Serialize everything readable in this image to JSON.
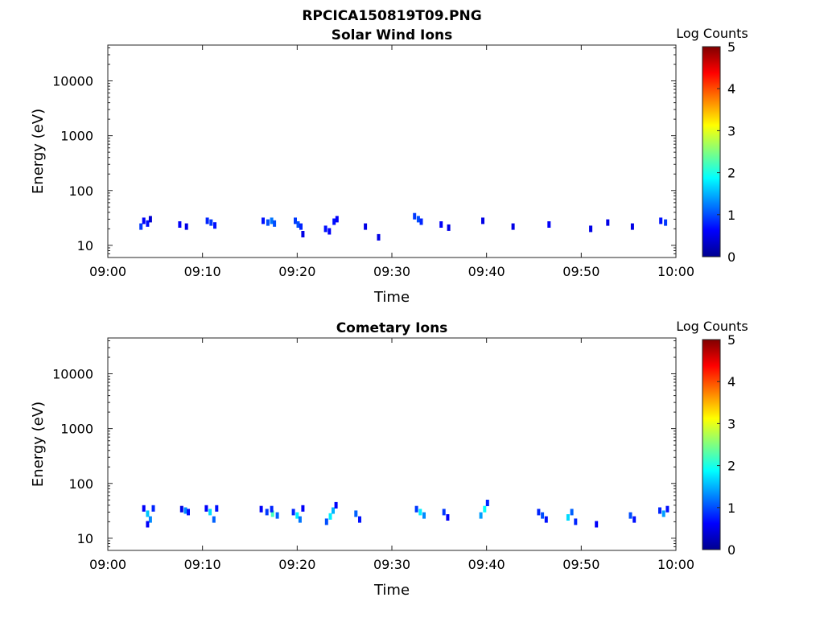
{
  "figure_title": "RPCICA150819T09.PNG",
  "chart_data": [
    {
      "type": "heatmap",
      "title": "Solar Wind Ions",
      "xlabel": "Time",
      "ylabel": "Energy (eV)",
      "x_ticks": [
        "09:00",
        "09:10",
        "09:20",
        "09:30",
        "09:40",
        "09:50",
        "10:00"
      ],
      "xlim": [
        "09:00",
        "10:00"
      ],
      "y_scale": "log",
      "y_ticks": [
        10,
        100,
        1000,
        10000
      ],
      "ylim": [
        6,
        45000
      ],
      "colorbar": {
        "label": "Log Counts",
        "range": [
          0,
          5
        ],
        "ticks": [
          0,
          1,
          2,
          3,
          4,
          5
        ],
        "colormap": "jet"
      },
      "cells": [
        [
          3.5,
          22,
          0.9
        ],
        [
          3.8,
          28,
          0.6
        ],
        [
          4.2,
          25,
          0.7
        ],
        [
          4.5,
          30,
          0.4
        ],
        [
          7.6,
          24,
          0.6
        ],
        [
          8.3,
          22,
          0.5
        ],
        [
          10.5,
          28,
          0.8
        ],
        [
          10.9,
          26,
          0.9
        ],
        [
          11.3,
          23,
          0.7
        ],
        [
          16.4,
          28,
          0.7
        ],
        [
          16.9,
          26,
          1.0
        ],
        [
          17.3,
          28,
          1.2
        ],
        [
          17.6,
          25,
          1.0
        ],
        [
          19.8,
          28,
          0.9
        ],
        [
          20.1,
          24,
          1.0
        ],
        [
          20.4,
          22,
          0.8
        ],
        [
          20.6,
          16,
          0.5
        ],
        [
          23.0,
          20,
          0.7
        ],
        [
          23.4,
          18,
          0.6
        ],
        [
          23.9,
          27,
          0.7
        ],
        [
          24.2,
          30,
          0.6
        ],
        [
          27.2,
          22,
          0.5
        ],
        [
          28.6,
          14,
          0.5
        ],
        [
          32.4,
          34,
          0.9
        ],
        [
          32.8,
          30,
          1.0
        ],
        [
          33.1,
          27,
          0.8
        ],
        [
          35.2,
          24,
          0.6
        ],
        [
          36.0,
          21,
          0.5
        ],
        [
          39.6,
          28,
          0.5
        ],
        [
          42.8,
          22,
          0.5
        ],
        [
          46.6,
          24,
          0.6
        ],
        [
          51.0,
          20,
          0.5
        ],
        [
          52.8,
          26,
          0.5
        ],
        [
          55.4,
          22,
          0.5
        ],
        [
          58.4,
          28,
          0.7
        ],
        [
          58.9,
          26,
          0.9
        ]
      ]
    },
    {
      "type": "heatmap",
      "title": "Cometary Ions",
      "xlabel": "Time",
      "ylabel": "Energy (eV)",
      "x_ticks": [
        "09:00",
        "09:10",
        "09:20",
        "09:30",
        "09:40",
        "09:50",
        "10:00"
      ],
      "xlim": [
        "09:00",
        "10:00"
      ],
      "y_scale": "log",
      "y_ticks": [
        10,
        100,
        1000,
        10000
      ],
      "ylim": [
        6,
        45000
      ],
      "colorbar": {
        "label": "Log Counts",
        "range": [
          0,
          5
        ],
        "ticks": [
          0,
          1,
          2,
          3,
          4,
          5
        ],
        "colormap": "jet"
      },
      "cells": [
        [
          3.8,
          35,
          0.6
        ],
        [
          4.2,
          28,
          1.6
        ],
        [
          4.5,
          22,
          1.3
        ],
        [
          4.8,
          35,
          0.8
        ],
        [
          4.2,
          18,
          0.6
        ],
        [
          7.8,
          34,
          0.5
        ],
        [
          8.2,
          32,
          1.3
        ],
        [
          8.5,
          30,
          0.7
        ],
        [
          10.4,
          35,
          0.6
        ],
        [
          10.8,
          30,
          1.7
        ],
        [
          11.2,
          22,
          1.1
        ],
        [
          11.5,
          35,
          0.7
        ],
        [
          16.2,
          34,
          0.6
        ],
        [
          16.8,
          30,
          0.9
        ],
        [
          17.4,
          28,
          2.2
        ],
        [
          17.9,
          26,
          1.1
        ],
        [
          17.3,
          34,
          0.8
        ],
        [
          19.6,
          30,
          0.8
        ],
        [
          20.0,
          26,
          1.8
        ],
        [
          20.3,
          22,
          1.2
        ],
        [
          20.6,
          35,
          0.6
        ],
        [
          23.1,
          20,
          1.0
        ],
        [
          23.5,
          25,
          1.8
        ],
        [
          23.8,
          32,
          1.5
        ],
        [
          24.1,
          40,
          0.6
        ],
        [
          26.2,
          28,
          1.1
        ],
        [
          26.6,
          22,
          0.7
        ],
        [
          32.6,
          34,
          0.9
        ],
        [
          33.0,
          30,
          1.8
        ],
        [
          33.4,
          26,
          1.3
        ],
        [
          35.5,
          30,
          0.9
        ],
        [
          35.9,
          24,
          0.6
        ],
        [
          39.4,
          26,
          1.4
        ],
        [
          39.8,
          34,
          1.9
        ],
        [
          40.1,
          44,
          0.8
        ],
        [
          45.5,
          30,
          0.8
        ],
        [
          45.9,
          26,
          1.0
        ],
        [
          46.3,
          22,
          0.7
        ],
        [
          48.6,
          24,
          1.7
        ],
        [
          49.0,
          30,
          1.1
        ],
        [
          49.4,
          20,
          0.8
        ],
        [
          51.6,
          18,
          0.6
        ],
        [
          55.2,
          26,
          1.0
        ],
        [
          55.6,
          22,
          0.7
        ],
        [
          58.3,
          32,
          0.8
        ],
        [
          58.7,
          28,
          1.4
        ],
        [
          59.1,
          34,
          0.7
        ]
      ]
    }
  ]
}
